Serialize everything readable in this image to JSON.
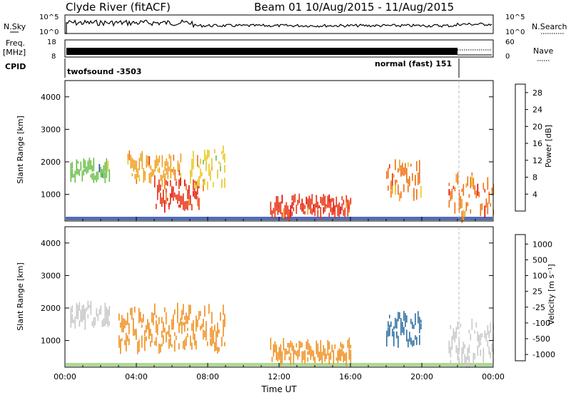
{
  "header": {
    "station": "Clyde River (fitACF)",
    "beam_and_dates": "Beam 01  10/Aug/2015 - 11/Aug/2015"
  },
  "top_panels": {
    "noise": {
      "left_label": "N.Sky",
      "right_label": "N.Search",
      "left_ticks": [
        "10^5",
        "10^0"
      ],
      "right_ticks": [
        "10^5",
        "10^0"
      ]
    },
    "freq": {
      "left_label_line1": "Freq.",
      "left_label_line2": "[MHz]",
      "left_ticks": [
        "18",
        "8"
      ],
      "right_label": "Nave",
      "right_ticks": [
        "60",
        "0"
      ]
    },
    "cpid": {
      "label": "CPID",
      "modes": [
        "twofsound -3503",
        "normal (fast) 151"
      ]
    }
  },
  "colors": {
    "power_scale": [
      "#1010e0",
      "#2848a0",
      "#2f8a6a",
      "#6cbf4a",
      "#e8c820",
      "#f0a020",
      "#f07010",
      "#e83010",
      "#e00000"
    ],
    "velocity_scale": [
      "#2040d0",
      "#3070a0",
      "#40a060",
      "#80d040",
      "#c8c8c8",
      "#f8c040",
      "#f09020",
      "#f06010",
      "#e81010"
    ]
  },
  "chart_data": [
    {
      "type": "heatmap",
      "title": "",
      "xlabel": "Time UT",
      "ylabel": "Slant Range [km]",
      "x_ticks": [
        "00:00",
        "04:00",
        "08:00",
        "12:00",
        "16:00",
        "20:00",
        "00:00"
      ],
      "y_ticks": [
        "1000",
        "2000",
        "3000",
        "4000"
      ],
      "xlim": [
        "00:00",
        "24:00"
      ],
      "ylim": [
        180,
        4500
      ],
      "colorbar": {
        "label": "Power [dB]",
        "ticks": [
          "4",
          "8",
          "12",
          "16",
          "20",
          "24",
          "28"
        ],
        "range": [
          0,
          30
        ]
      },
      "regions": [
        {
          "t_start": 0.3,
          "t_end": 2.5,
          "r_min": 1500,
          "r_max": 2000,
          "value": 10
        },
        {
          "t_start": 3.5,
          "t_end": 6.5,
          "r_min": 1400,
          "r_max": 2200,
          "value": 18
        },
        {
          "t_start": 5.0,
          "t_end": 7.5,
          "r_min": 600,
          "r_max": 1400,
          "value": 26
        },
        {
          "t_start": 7.0,
          "t_end": 9.0,
          "r_min": 1200,
          "r_max": 2400,
          "value": 16
        },
        {
          "t_start": 11.5,
          "t_end": 16.0,
          "r_min": 350,
          "r_max": 900,
          "value": 24
        },
        {
          "t_start": 18.0,
          "t_end": 20.0,
          "r_min": 900,
          "r_max": 2000,
          "value": 20
        },
        {
          "t_start": 21.5,
          "t_end": 24.0,
          "r_min": 300,
          "r_max": 1500,
          "value": 22
        }
      ]
    },
    {
      "type": "heatmap",
      "title": "",
      "xlabel": "Time UT",
      "ylabel": "Slant Range [km]",
      "x_ticks": [
        "00:00",
        "04:00",
        "08:00",
        "12:00",
        "16:00",
        "20:00",
        "00:00"
      ],
      "y_ticks": [
        "1000",
        "2000",
        "3000",
        "4000"
      ],
      "xlim": [
        "00:00",
        "24:00"
      ],
      "ylim": [
        180,
        4500
      ],
      "colorbar": {
        "label": "Velocity [m s⁻¹]",
        "ticks": [
          "1000",
          "500",
          "100",
          "25",
          "-25",
          "-100",
          "-500",
          "-1000"
        ]
      },
      "regions": [
        {
          "t_start": 0.3,
          "t_end": 2.5,
          "r_min": 1500,
          "r_max": 2100,
          "value": 0
        },
        {
          "t_start": 3.0,
          "t_end": 9.0,
          "r_min": 700,
          "r_max": 2000,
          "value": -300
        },
        {
          "t_start": 11.5,
          "t_end": 16.0,
          "r_min": 400,
          "r_max": 900,
          "value": -300
        },
        {
          "t_start": 18.0,
          "t_end": 20.0,
          "r_min": 900,
          "r_max": 1800,
          "value": 600
        },
        {
          "t_start": 21.5,
          "t_end": 24.0,
          "r_min": 300,
          "r_max": 1500,
          "value": 0
        }
      ]
    }
  ]
}
